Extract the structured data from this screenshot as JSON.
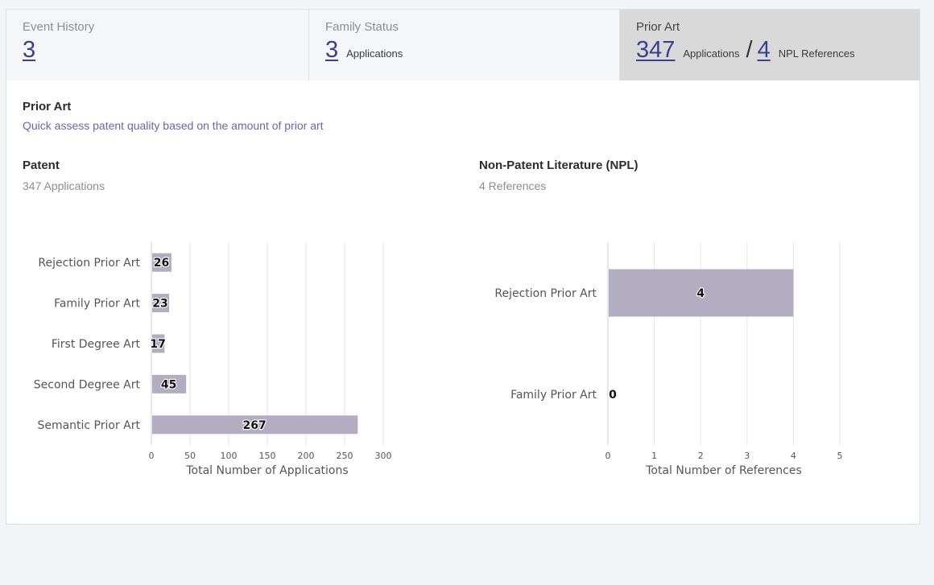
{
  "tabs": [
    {
      "title": "Event History",
      "count": "3"
    },
    {
      "title": "Family Status",
      "count": "3",
      "unit": "Applications"
    },
    {
      "title": "Prior Art",
      "count": "347",
      "unit": "Applications",
      "separator": "/",
      "count2": "4",
      "unit2": "NPL References"
    }
  ],
  "section": {
    "title": "Prior Art",
    "subtitle": "Quick assess patent quality based on the amount of prior art"
  },
  "patent": {
    "title": "Patent",
    "subtitle": "347 Applications"
  },
  "npl": {
    "title": "Non-Patent Literature (NPL)",
    "subtitle": "4 References"
  },
  "colors": {
    "bar": "#b3adc2",
    "link": "#3c3d8f",
    "subtitle": "#6b64b0",
    "active_tab": "#d9d9d9"
  },
  "chart_data": [
    {
      "type": "bar",
      "orientation": "horizontal",
      "categories": [
        "Rejection Prior Art",
        "Family Prior Art",
        "First Degree Art",
        "Second Degree Art",
        "Semantic Prior Art"
      ],
      "values": [
        26,
        23,
        17,
        45,
        267
      ],
      "xlabel": "Total Number of Applications",
      "xlim": [
        0,
        300
      ],
      "xticks": [
        0,
        50,
        100,
        150,
        200,
        250,
        300
      ],
      "grid": true
    },
    {
      "type": "bar",
      "orientation": "horizontal",
      "categories": [
        "Rejection Prior Art",
        "Family Prior Art"
      ],
      "values": [
        4,
        0
      ],
      "xlabel": "Total Number of References",
      "xlim": [
        0,
        5
      ],
      "xticks": [
        0,
        1,
        2,
        3,
        4,
        5
      ],
      "grid": true
    }
  ]
}
